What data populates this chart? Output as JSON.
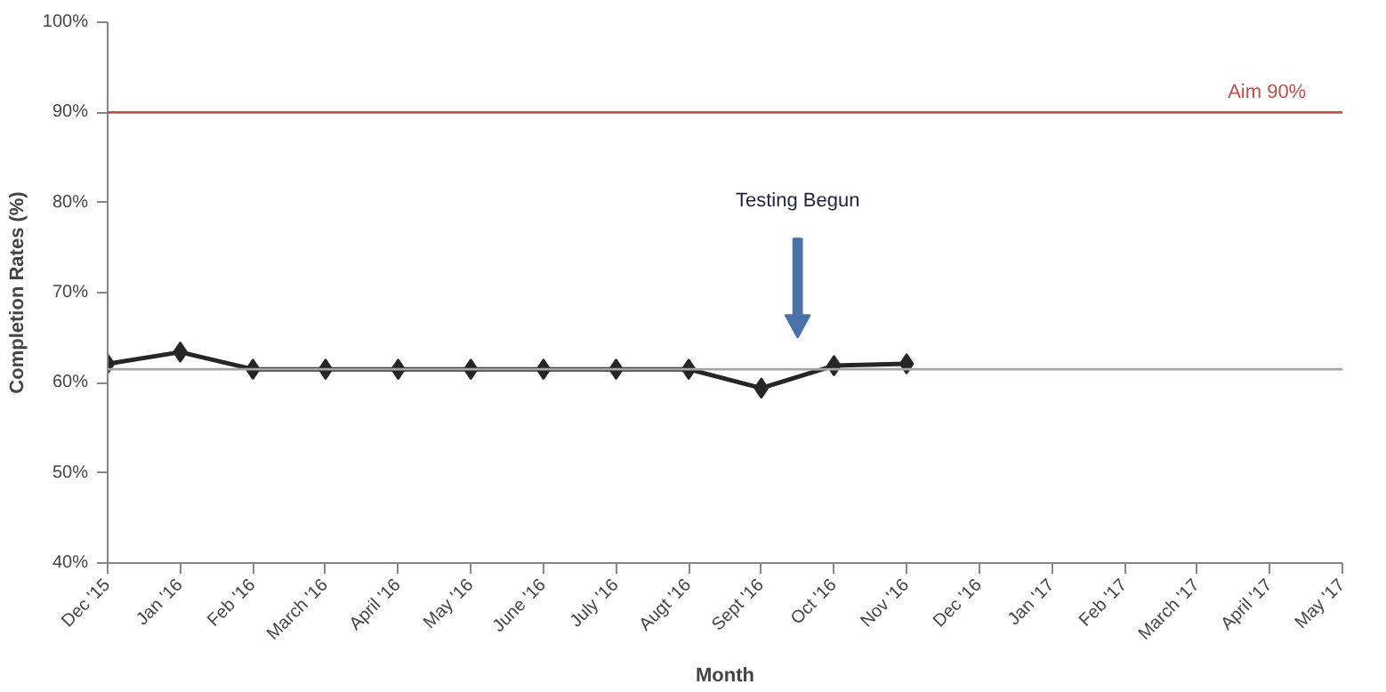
{
  "chart_data": {
    "type": "line",
    "xlabel": "Month",
    "ylabel": "Completion Rates (%)",
    "categories": [
      "Dec '15",
      "Jan '16",
      "Feb '16",
      "March '16",
      "April '16",
      "May '16",
      "June '16",
      "July '16",
      "Augt '16",
      "Sept '16",
      "Oct '16",
      "Nov '16",
      "Dec '16",
      "Jan '17",
      "Feb '17",
      "March '17",
      "April '17",
      "May '17"
    ],
    "series": [
      {
        "color": "#262626",
        "values": [
          62.1,
          63.4,
          61.5,
          61.5,
          61.5,
          61.5,
          61.5,
          61.5,
          61.5,
          59.4,
          61.9,
          62.1,
          null,
          null,
          null,
          null,
          null,
          null
        ]
      }
    ],
    "ylim": [
      40,
      100
    ],
    "yticks": [
      {
        "value": 40,
        "label": "40%"
      },
      {
        "value": 50,
        "label": "50%"
      },
      {
        "value": 60,
        "label": "60%"
      },
      {
        "value": 70,
        "label": "70%"
      },
      {
        "value": 80,
        "label": "80%"
      },
      {
        "value": 90,
        "label": "90%"
      },
      {
        "value": 100,
        "label": "100%"
      }
    ],
    "ref_lines": [
      {
        "axis": "y",
        "value": 90,
        "label": "Aim 90%",
        "color": "#c0504d"
      },
      {
        "axis": "y",
        "value": 61.5,
        "color": "#a6a6a6"
      }
    ],
    "annotations": [
      "Testing Begun"
    ],
    "marker": "diamond",
    "grid": false
  }
}
